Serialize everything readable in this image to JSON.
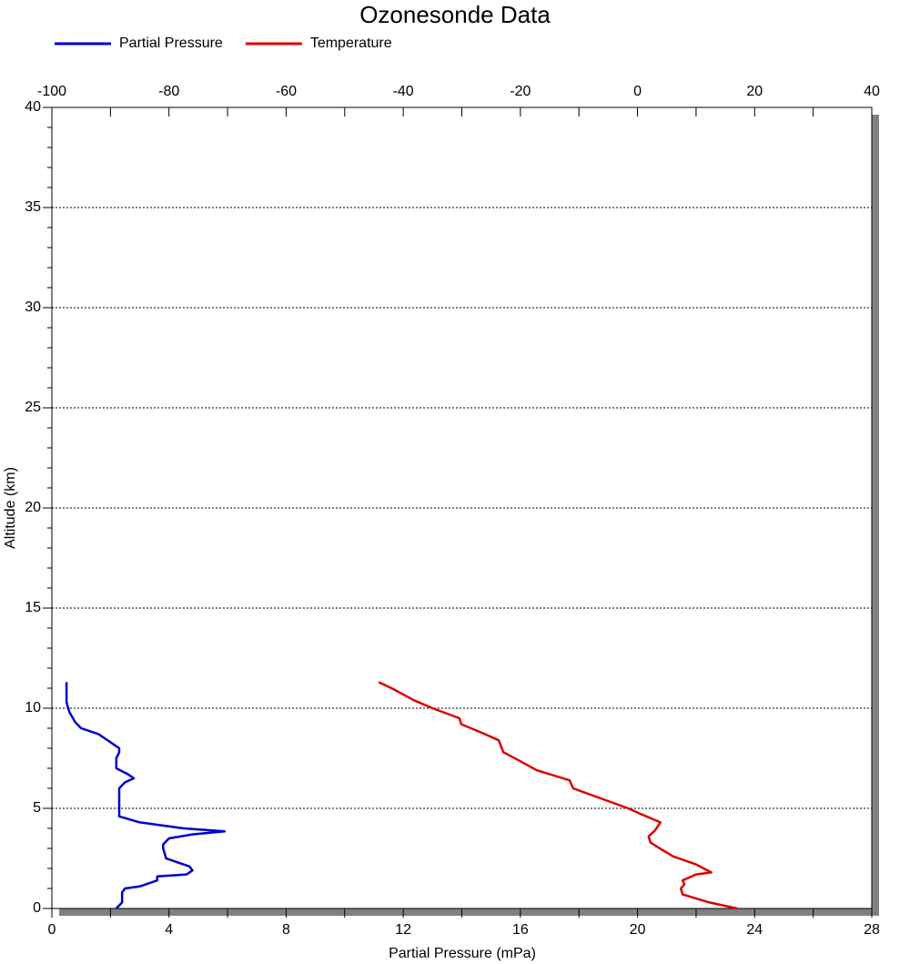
{
  "chart_data": {
    "type": "line",
    "title": "Ozonesonde Data",
    "xlabel": "Partial Pressure (mPa)",
    "ylabel": "Altitude (km)",
    "xlim": [
      0,
      28
    ],
    "xticks": [
      0,
      4,
      8,
      12,
      16,
      20,
      24,
      28
    ],
    "xminorticks": [
      2,
      6,
      10,
      14,
      18,
      22,
      26
    ],
    "x2lim": [
      -100,
      40
    ],
    "x2ticks": [
      -100,
      -80,
      -60,
      -40,
      -20,
      0,
      20,
      40
    ],
    "x2minorticks": [
      -90,
      -70,
      -50,
      -30,
      -10,
      10,
      30
    ],
    "ylim": [
      0,
      40
    ],
    "yticks": [
      0,
      5,
      10,
      15,
      20,
      25,
      30,
      35,
      40
    ],
    "yminorticks": [
      1,
      2,
      3,
      4,
      6,
      7,
      8,
      9,
      11,
      12,
      13,
      14,
      16,
      17,
      18,
      19,
      21,
      22,
      23,
      24,
      26,
      27,
      28,
      29,
      31,
      32,
      33,
      34,
      36,
      37,
      38,
      39
    ],
    "grid": true,
    "legend": "top-left",
    "series": [
      {
        "name": "Partial Pressure",
        "color": "#0000cc",
        "axis": "x",
        "y": [
          0,
          0.3,
          0.8,
          1.0,
          1.1,
          1.4,
          1.6,
          1.7,
          1.9,
          2.1,
          2.3,
          2.5,
          3.0,
          3.2,
          3.5,
          3.7,
          3.85,
          4.0,
          4.3,
          4.6,
          5.0,
          6.0,
          6.3,
          6.5,
          6.7,
          7.0,
          7.5,
          7.8,
          8.0,
          8.3,
          8.7,
          9.0,
          9.3,
          9.8,
          10.3,
          10.8,
          11.3
        ],
        "values": [
          2.2,
          2.4,
          2.4,
          2.5,
          3.0,
          3.6,
          3.6,
          4.6,
          4.8,
          4.7,
          4.3,
          3.9,
          3.8,
          3.8,
          4.0,
          4.8,
          5.9,
          4.5,
          3.0,
          2.3,
          2.3,
          2.3,
          2.5,
          2.8,
          2.6,
          2.2,
          2.2,
          2.3,
          2.3,
          2.0,
          1.6,
          1.0,
          0.8,
          0.6,
          0.5,
          0.5,
          0.5
        ]
      },
      {
        "name": "Temperature",
        "color": "#dd0000",
        "axis": "x2",
        "y": [
          0,
          0.3,
          0.7,
          1.0,
          1.2,
          1.4,
          1.7,
          1.8,
          2.2,
          2.6,
          3.0,
          3.3,
          3.6,
          3.9,
          4.3,
          4.7,
          5.0,
          5.5,
          6.0,
          6.4,
          6.9,
          7.4,
          7.8,
          8.4,
          8.8,
          9.2,
          9.5,
          10.0,
          10.4,
          11.0,
          11.3
        ],
        "values": [
          17.0,
          12.3,
          7.7,
          7.4,
          8.0,
          7.7,
          10.0,
          12.6,
          10.0,
          6.1,
          3.8,
          2.2,
          1.9,
          3.0,
          3.9,
          0.7,
          -1.6,
          -6.3,
          -11.0,
          -11.6,
          -17.2,
          -20.3,
          -22.9,
          -23.7,
          -26.8,
          -30.1,
          -30.4,
          -35.0,
          -38.2,
          -42.0,
          -44.2
        ]
      }
    ]
  }
}
